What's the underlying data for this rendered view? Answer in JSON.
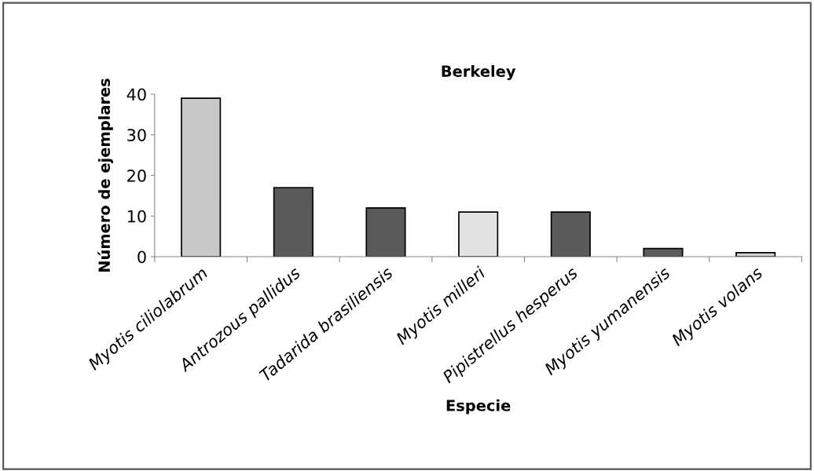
{
  "chart_data": {
    "type": "bar",
    "title": "Berkeley",
    "xlabel": "Especie",
    "ylabel": "Número de ejemplares",
    "categories": [
      "Myotis ciliolabrum",
      "Antrozous pallidus",
      "Tadarida brasiliensis",
      "Myotis milleri",
      "Pipistrellus hesperus",
      "Myotis yumanensis",
      "Myotis volans"
    ],
    "values": [
      39,
      17,
      12,
      11,
      11,
      2,
      1
    ],
    "colors": [
      "#c8c8c8",
      "#5a5a5a",
      "#5a5a5a",
      "#e2e2e2",
      "#5a5a5a",
      "#5a5a5a",
      "#cfcfcf"
    ],
    "ylim": [
      0,
      40
    ],
    "yticks": [
      0,
      10,
      20,
      30,
      40
    ],
    "grid": false,
    "legend": false
  }
}
